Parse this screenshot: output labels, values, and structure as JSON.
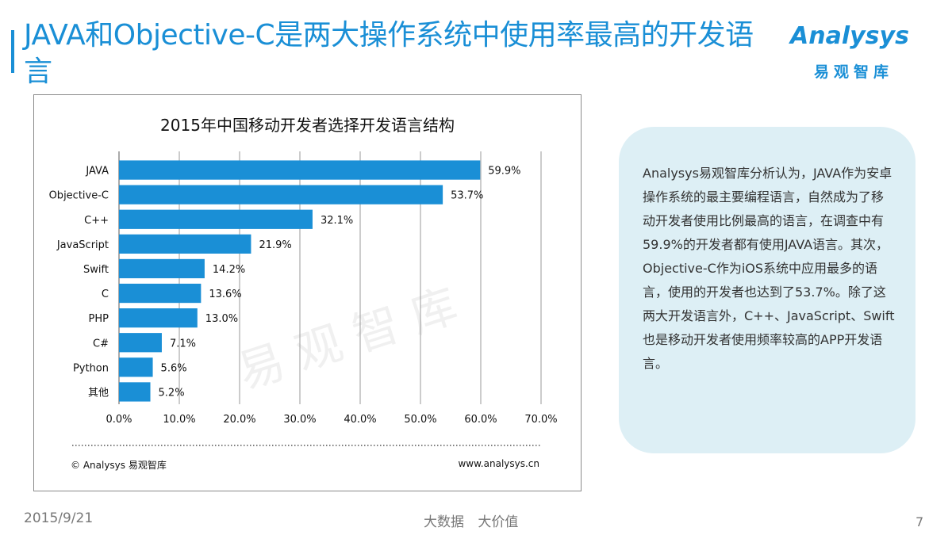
{
  "header": {
    "title": "JAVA和Objective-C是两大操作系统中使用率最高的开发语言",
    "logo_word": "Analysys",
    "logo_cn": "易观智库"
  },
  "colors": {
    "accent": "#1a8fd6",
    "bar": "#1a8fd6",
    "info_bg": "#ddeff5"
  },
  "chart_data": {
    "type": "bar",
    "orientation": "horizontal",
    "title": "2015年中国移动开发者选择开发语言结构",
    "categories": [
      "JAVA",
      "Objective-C",
      "C++",
      "JavaScript",
      "Swift",
      "C",
      "PHP",
      "C#",
      "Python",
      "其他"
    ],
    "values": [
      59.9,
      53.7,
      32.1,
      21.9,
      14.2,
      13.6,
      13.0,
      7.1,
      5.6,
      5.2
    ],
    "value_labels": [
      "59.9%",
      "53.7%",
      "32.1%",
      "21.9%",
      "14.2%",
      "13.6%",
      "13.0%",
      "7.1%",
      "5.6%",
      "5.2%"
    ],
    "xlim": [
      0,
      70
    ],
    "xticks": [
      "0.0%",
      "10.0%",
      "20.0%",
      "30.0%",
      "40.0%",
      "50.0%",
      "60.0%",
      "70.0%"
    ],
    "grid": true,
    "xlabel": "",
    "ylabel": ""
  },
  "chart_footer": {
    "source": "© Analysys 易观智库",
    "url": "www.analysys.cn"
  },
  "watermark": "易观智库",
  "info_box": {
    "text": "Analysys易观智库分析认为，JAVA作为安卓操作系统的最主要编程语言，自然成为了移动开发者使用比例最高的语言，在调查中有59.9%的开发者都有使用JAVA语言。其次，Objective-C作为iOS系统中应用最多的语言，使用的开发者也达到了53.7%。除了这两大开发语言外，C++、JavaScript、Swift也是移动开发者使用频率较高的APP开发语言。"
  },
  "footer": {
    "date": "2015/9/21",
    "slogan": "大数据 大价值",
    "page": "7"
  }
}
